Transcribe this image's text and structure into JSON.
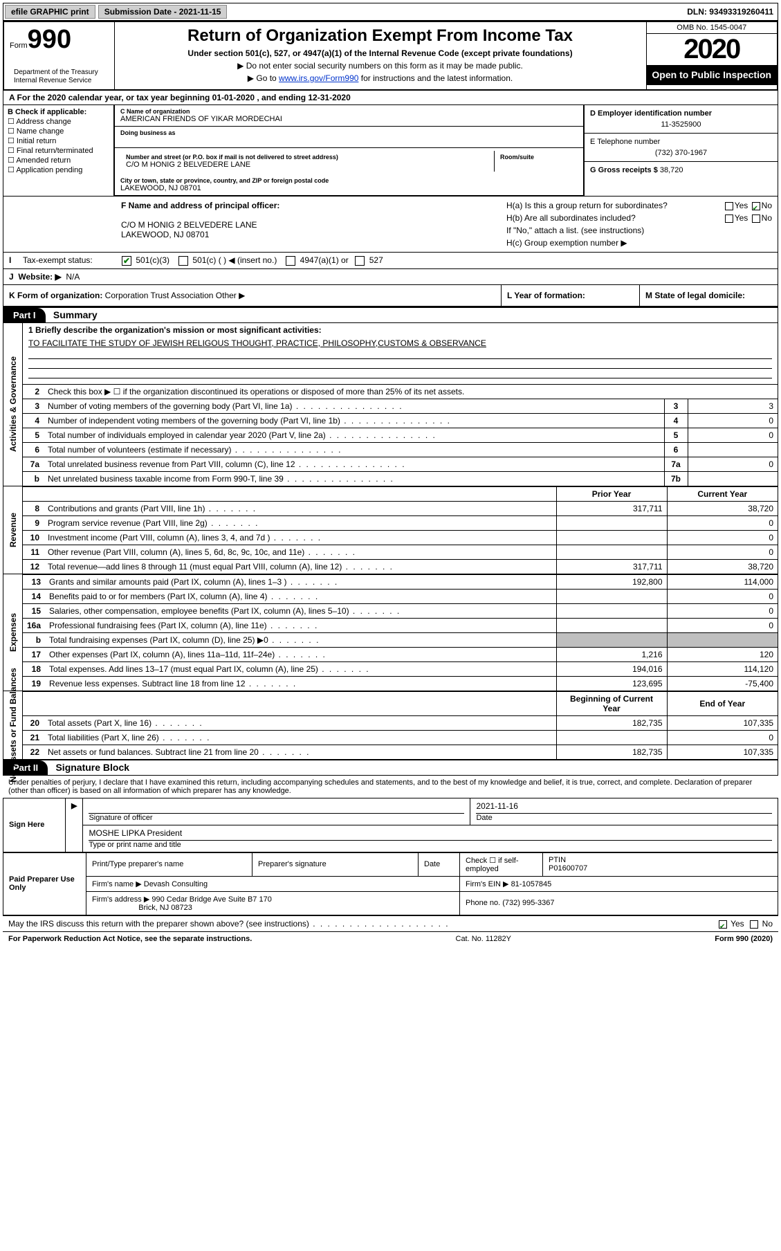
{
  "topbar": {
    "efile": "efile GRAPHIC print",
    "sub_label": "Submission Date - ",
    "sub_date": "2021-11-15",
    "dln": "DLN: 93493319260411"
  },
  "header": {
    "form": "Form",
    "form_num": "990",
    "title": "Return of Organization Exempt From Income Tax",
    "subtitle": "Under section 501(c), 527, or 4947(a)(1) of the Internal Revenue Code (except private foundations)",
    "line1": "▶ Do not enter social security numbers on this form as it may be made public.",
    "line2_pre": "▶ Go to ",
    "line2_link": "www.irs.gov/Form990",
    "line2_post": " for instructions and the latest information.",
    "dept1": "Department of the Treasury",
    "dept2": "Internal Revenue Service",
    "omb": "OMB No. 1545-0047",
    "year": "2020",
    "open_pub": "Open to Public Inspection"
  },
  "sectionA": "A For the 2020 calendar year, or tax year beginning 01-01-2020   , and ending 12-31-2020",
  "sectionB": {
    "label": "B Check if applicable:",
    "items": [
      "Address change",
      "Name change",
      "Initial return",
      "Final return/terminated",
      "Amended return",
      "Application pending"
    ]
  },
  "sectionC": {
    "name_lbl": "C Name of organization",
    "name": "AMERICAN FRIENDS OF YIKAR MORDECHAI",
    "dba_lbl": "Doing business as",
    "street_lbl": "Number and street (or P.O. box if mail is not delivered to street address)",
    "room_lbl": "Room/suite",
    "street": "C/O M HONIG 2 BELVEDERE LANE",
    "city_lbl": "City or town, state or province, country, and ZIP or foreign postal code",
    "city": "LAKEWOOD, NJ  08701"
  },
  "sectionD": {
    "lbl": "D Employer identification number",
    "val": "11-3525900"
  },
  "sectionE": {
    "lbl": "E Telephone number",
    "val": "(732) 370-1967"
  },
  "sectionG": {
    "lbl": "G Gross receipts $",
    "val": "38,720"
  },
  "sectionF": {
    "lbl": "F Name and address of principal officer:",
    "line1": "C/O M HONIG 2 BELVEDERE LANE",
    "line2": "LAKEWOOD, NJ  08701"
  },
  "sectionH": {
    "ha": "H(a)  Is this a group return for subordinates?",
    "hb": "H(b)  Are all subordinates included?",
    "hb_note": "If \"No,\" attach a list. (see instructions)",
    "hc": "H(c)  Group exemption number ▶",
    "yes": "Yes",
    "no": "No"
  },
  "status": {
    "lbl": "Tax-exempt status:",
    "i1": "501(c)(3)",
    "i2": "501(c) (  ) ◀ (insert no.)",
    "i3": "4947(a)(1) or",
    "i4": "527",
    "letter": "I"
  },
  "website": {
    "letter": "J",
    "lbl": "Website: ▶",
    "val": "N/A"
  },
  "rowK": {
    "lbl": "K Form of organization:",
    "i1": "Corporation",
    "i2": "Trust",
    "i3": "Association",
    "i4": "Other ▶",
    "l_lbl": "L Year of formation:",
    "m_lbl": "M State of legal domicile:"
  },
  "part1": {
    "hdr": "Part I",
    "title": "Summary"
  },
  "mission": {
    "lbl": "1  Briefly describe the organization's mission or most significant activities:",
    "text": "TO FACILITATE THE STUDY OF JEWISH RELIGOUS THOUGHT, PRACTICE, PHILOSOPHY,CUSTOMS & OBSERVANCE"
  },
  "gov_lines": [
    {
      "n": "2",
      "t": "Check this box ▶ ☐  if the organization discontinued its operations or disposed of more than 25% of its net assets."
    },
    {
      "n": "3",
      "t": "Number of voting members of the governing body (Part VI, line 1a)",
      "box": "3",
      "v": "3"
    },
    {
      "n": "4",
      "t": "Number of independent voting members of the governing body (Part VI, line 1b)",
      "box": "4",
      "v": "0"
    },
    {
      "n": "5",
      "t": "Total number of individuals employed in calendar year 2020 (Part V, line 2a)",
      "box": "5",
      "v": "0"
    },
    {
      "n": "6",
      "t": "Total number of volunteers (estimate if necessary)",
      "box": "6",
      "v": ""
    },
    {
      "n": "7a",
      "t": "Total unrelated business revenue from Part VIII, column (C), line 12",
      "box": "7a",
      "v": "0"
    },
    {
      "n": "b",
      "t": "Net unrelated business taxable income from Form 990-T, line 39",
      "box": "7b",
      "v": ""
    }
  ],
  "side_labels": {
    "gov": "Activities & Governance",
    "rev": "Revenue",
    "exp": "Expenses",
    "net": "Net Assets or Fund Balances"
  },
  "fin_headers": {
    "py": "Prior Year",
    "cy": "Current Year",
    "by": "Beginning of Current Year",
    "ey": "End of Year"
  },
  "rev_lines": [
    {
      "n": "8",
      "t": "Contributions and grants (Part VIII, line 1h)",
      "py": "317,711",
      "cy": "38,720"
    },
    {
      "n": "9",
      "t": "Program service revenue (Part VIII, line 2g)",
      "py": "",
      "cy": "0"
    },
    {
      "n": "10",
      "t": "Investment income (Part VIII, column (A), lines 3, 4, and 7d )",
      "py": "",
      "cy": "0"
    },
    {
      "n": "11",
      "t": "Other revenue (Part VIII, column (A), lines 5, 6d, 8c, 9c, 10c, and 11e)",
      "py": "",
      "cy": "0"
    },
    {
      "n": "12",
      "t": "Total revenue—add lines 8 through 11 (must equal Part VIII, column (A), line 12)",
      "py": "317,711",
      "cy": "38,720"
    }
  ],
  "exp_lines": [
    {
      "n": "13",
      "t": "Grants and similar amounts paid (Part IX, column (A), lines 1–3 )",
      "py": "192,800",
      "cy": "114,000"
    },
    {
      "n": "14",
      "t": "Benefits paid to or for members (Part IX, column (A), line 4)",
      "py": "",
      "cy": "0"
    },
    {
      "n": "15",
      "t": "Salaries, other compensation, employee benefits (Part IX, column (A), lines 5–10)",
      "py": "",
      "cy": "0"
    },
    {
      "n": "16a",
      "t": "Professional fundraising fees (Part IX, column (A), line 11e)",
      "py": "",
      "cy": "0"
    },
    {
      "n": "b",
      "t": "Total fundraising expenses (Part IX, column (D), line 25) ▶0",
      "py": "grey",
      "cy": "grey"
    },
    {
      "n": "17",
      "t": "Other expenses (Part IX, column (A), lines 11a–11d, 11f–24e)",
      "py": "1,216",
      "cy": "120"
    },
    {
      "n": "18",
      "t": "Total expenses. Add lines 13–17 (must equal Part IX, column (A), line 25)",
      "py": "194,016",
      "cy": "114,120"
    },
    {
      "n": "19",
      "t": "Revenue less expenses. Subtract line 18 from line 12",
      "py": "123,695",
      "cy": "-75,400"
    }
  ],
  "net_lines": [
    {
      "n": "20",
      "t": "Total assets (Part X, line 16)",
      "py": "182,735",
      "cy": "107,335"
    },
    {
      "n": "21",
      "t": "Total liabilities (Part X, line 26)",
      "py": "",
      "cy": "0"
    },
    {
      "n": "22",
      "t": "Net assets or fund balances. Subtract line 21 from line 20",
      "py": "182,735",
      "cy": "107,335"
    }
  ],
  "part2": {
    "hdr": "Part II",
    "title": "Signature Block"
  },
  "sig_text": "Under penalties of perjury, I declare that I have examined this return, including accompanying schedules and statements, and to the best of my knowledge and belief, it is true, correct, and complete. Declaration of preparer (other than officer) is based on all information of which preparer has any knowledge.",
  "sign": {
    "here": "Sign Here",
    "sig_lbl": "Signature of officer",
    "date_lbl": "Date",
    "date": "2021-11-16",
    "name": "MOSHE LIPKA President",
    "name_lbl": "Type or print name and title"
  },
  "prep": {
    "title": "Paid Preparer Use Only",
    "col1": "Print/Type preparer's name",
    "col2": "Preparer's signature",
    "col3": "Date",
    "col4_lbl": "Check ☐ if self-employed",
    "col5_lbl": "PTIN",
    "ptin": "P01600707",
    "firm_lbl": "Firm's name   ▶",
    "firm": "Devash Consulting",
    "ein_lbl": "Firm's EIN ▶",
    "ein": "81-1057845",
    "addr_lbl": "Firm's address ▶",
    "addr1": "990 Cedar Bridge Ave Suite B7 170",
    "addr2": "Brick, NJ  08723",
    "phone_lbl": "Phone no.",
    "phone": "(732) 995-3367"
  },
  "discuss": {
    "text": "May the IRS discuss this return with the preparer shown above? (see instructions)",
    "yes": "Yes",
    "no": "No"
  },
  "footer": {
    "left": "For Paperwork Reduction Act Notice, see the separate instructions.",
    "mid": "Cat. No. 11282Y",
    "right": "Form 990 (2020)"
  },
  "colors": {
    "link": "#0033cc",
    "check": "#0a7a0a",
    "grey": "#bfbfbf"
  }
}
